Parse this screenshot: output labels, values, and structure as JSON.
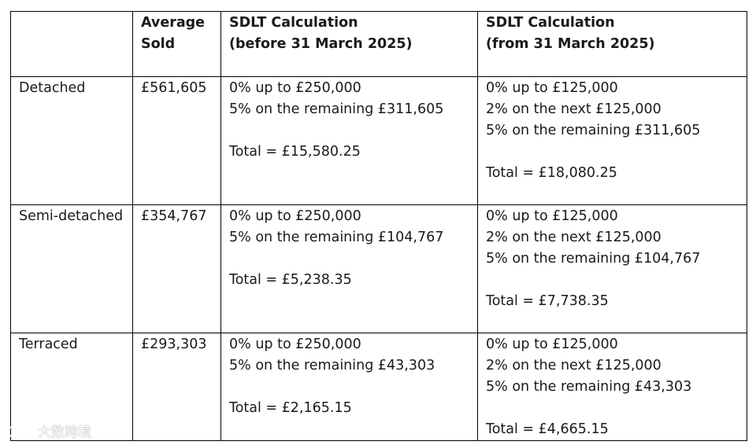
{
  "table": {
    "headers": [
      "",
      [
        "Average",
        "Sold"
      ],
      [
        "SDLT Calculation",
        "(before 31 March 2025)"
      ],
      [
        "SDLT Calculation",
        "(from 31 March 2025)"
      ]
    ],
    "rows": [
      {
        "type": "Detached",
        "average_sold": "£561,605",
        "before": [
          "0% up to £250,000",
          "5% on the remaining £311,605",
          "",
          "Total = £15,580.25"
        ],
        "after": [
          "0% up to £125,000",
          "2% on the next £125,000",
          "5% on the remaining £311,605",
          "",
          "Total = £18,080.25"
        ]
      },
      {
        "type": "Semi-detached",
        "average_sold": "£354,767",
        "before": [
          "0% up to £250,000",
          "5% on the remaining £104,767",
          "",
          "Total = £5,238.35"
        ],
        "after": [
          "0% up to £125,000",
          "2% on the next £125,000",
          "5% on the remaining £104,767",
          "",
          "Total = £7,738.35"
        ]
      },
      {
        "type": "Terraced",
        "average_sold": "£293,303",
        "before": [
          "0% up to £250,000",
          "5% on the remaining £43,303",
          "",
          "Total = £2,165.15"
        ],
        "after": [
          "0% up to £125,000",
          "2% on the next £125,000",
          "5% on the remaining £43,303",
          "",
          "Total = £4,665.15"
        ]
      }
    ]
  },
  "watermark": {
    "icon": "logo-icon",
    "text": "大数跨境"
  }
}
